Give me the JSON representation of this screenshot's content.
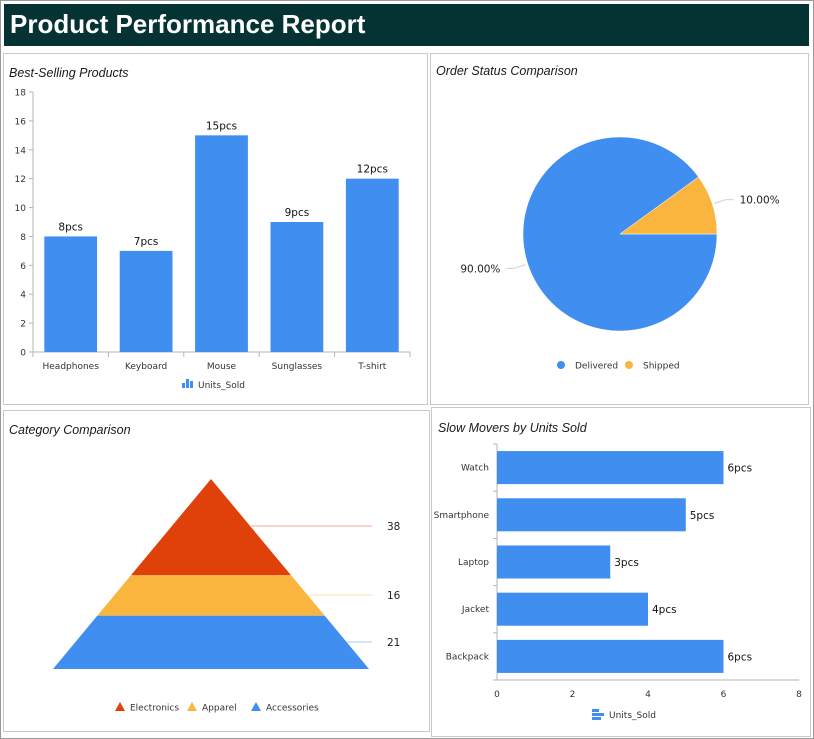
{
  "report": {
    "title": "Product Performance Report"
  },
  "panels": {
    "best_selling": {
      "title": "Best-Selling Products"
    },
    "order_status": {
      "title": "Order Status Comparison"
    },
    "category": {
      "title": "Category Comparison"
    },
    "slow_movers": {
      "title": "Slow Movers by Units Sold"
    }
  },
  "colors": {
    "header_bg": "#053233",
    "blue": "#3f8ef0",
    "orange": "#f9b53e",
    "red": "#e0410b"
  },
  "chart_data": [
    {
      "id": "best_selling",
      "type": "bar",
      "title": "Best-Selling Products",
      "categories": [
        "Headphones",
        "Keyboard",
        "Mouse",
        "Sunglasses",
        "T-shirt"
      ],
      "series": [
        {
          "name": "Units_Sold",
          "values": [
            8,
            7,
            15,
            9,
            12
          ]
        }
      ],
      "data_labels": [
        "8pcs",
        "7pcs",
        "15pcs",
        "9pcs",
        "12pcs"
      ],
      "y_ticks": [
        "0",
        "2",
        "4",
        "6",
        "8",
        "10",
        "12",
        "14",
        "16",
        "18"
      ],
      "ylim": [
        0,
        18
      ],
      "legend_position": "bottom",
      "grid": false
    },
    {
      "id": "order_status",
      "type": "pie",
      "title": "Order Status Comparison",
      "categories": [
        "Delivered",
        "Shipped"
      ],
      "values": [
        90,
        10
      ],
      "data_labels": [
        "90.00%",
        "10.00%"
      ],
      "legend_position": "bottom"
    },
    {
      "id": "category",
      "type": "pyramid",
      "title": "Category Comparison",
      "categories": [
        "Electronics",
        "Apparel",
        "Accessories"
      ],
      "values": [
        38,
        16,
        21
      ],
      "data_labels": [
        "38",
        "16",
        "21"
      ],
      "legend_position": "bottom"
    },
    {
      "id": "slow_movers",
      "type": "bar",
      "orientation": "horizontal",
      "title": "Slow Movers by Units Sold",
      "categories": [
        "Watch",
        "Smartphone",
        "Laptop",
        "Jacket",
        "Backpack"
      ],
      "series": [
        {
          "name": "Units_Sold",
          "values": [
            6,
            5,
            3,
            4,
            6
          ]
        }
      ],
      "data_labels": [
        "6pcs",
        "5pcs",
        "3pcs",
        "4pcs",
        "6pcs"
      ],
      "x_ticks": [
        "0",
        "2",
        "4",
        "6",
        "8"
      ],
      "xlim": [
        0,
        8
      ],
      "legend_position": "bottom",
      "grid": false
    }
  ]
}
